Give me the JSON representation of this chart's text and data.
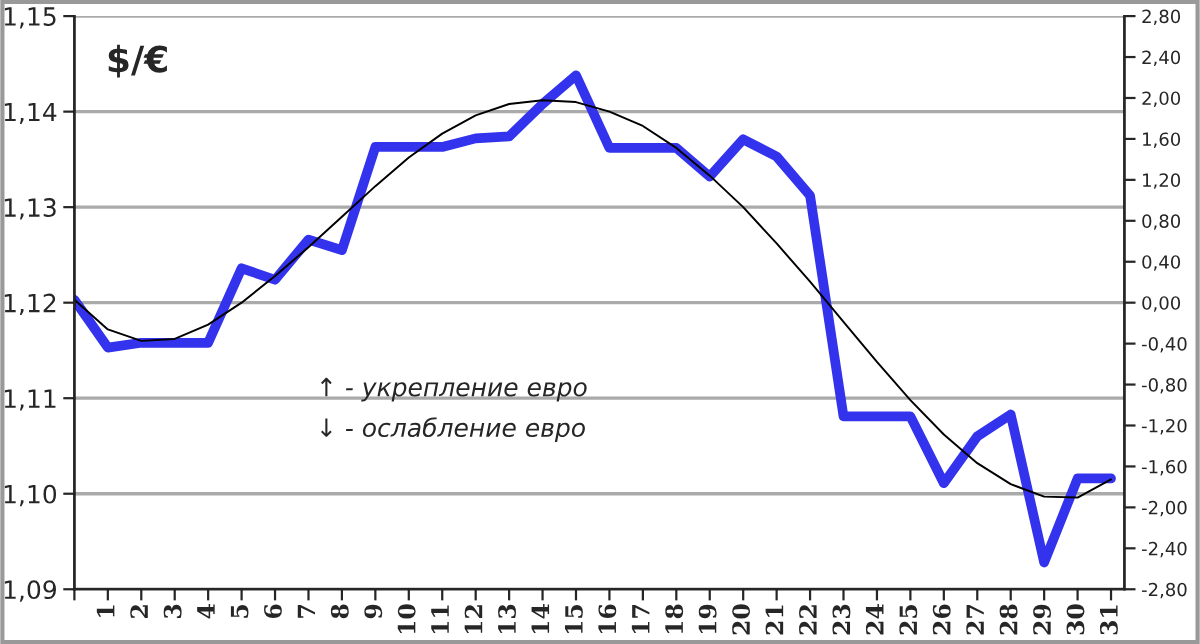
{
  "chart_data": {
    "type": "line",
    "categories": [
      null,
      "1",
      "2",
      "3",
      "4",
      "5",
      "6",
      "7",
      "8",
      "9",
      "10",
      "11",
      "12",
      "13",
      "14",
      "15",
      "16",
      "17",
      "18",
      "19",
      "20",
      "21",
      "22",
      "23",
      "24",
      "25",
      "26",
      "27",
      "28",
      "29",
      "30",
      "31"
    ],
    "series": [
      {
        "color": "#3333ee",
        "values": [
          1.1203,
          1.1153,
          1.1158,
          1.1158,
          1.1158,
          1.1236,
          1.1224,
          1.1266,
          1.1255,
          1.1363,
          1.1363,
          1.1363,
          1.1372,
          1.1374,
          1.1408,
          1.1438,
          1.1362,
          1.1362,
          1.1362,
          1.1332,
          1.1371,
          1.1353,
          1.1312,
          1.1081,
          1.1081,
          1.1081,
          1.1011,
          1.106,
          1.1083,
          1.0928,
          1.1016,
          1.1016
        ]
      },
      {
        "color": "#000000",
        "values": [
          1.1203,
          1.1172,
          1.116,
          1.1162,
          1.1177,
          1.12,
          1.1228,
          1.1258,
          1.129,
          1.1322,
          1.1352,
          1.1377,
          1.1396,
          1.1408,
          1.1412,
          1.141,
          1.14,
          1.1385,
          1.1362,
          1.1333,
          1.13,
          1.1262,
          1.1222,
          1.118,
          1.1138,
          1.1098,
          1.1062,
          1.1032,
          1.101,
          1.0997,
          1.0996,
          1.1015
        ]
      }
    ],
    "ylim": [
      1.09,
      1.15
    ],
    "yticks": [
      {
        "value": 1.09,
        "label": "1,09"
      },
      {
        "value": 1.1,
        "label": "1,10"
      },
      {
        "value": 1.11,
        "label": "1,11"
      },
      {
        "value": 1.12,
        "label": "1,12"
      },
      {
        "value": 1.13,
        "label": "1,13"
      },
      {
        "value": 1.14,
        "label": "1,14"
      },
      {
        "value": 1.15,
        "label": "1,15"
      }
    ],
    "y2lim": [
      -2.8,
      2.8
    ],
    "y2ticks": [
      {
        "value": 2.8,
        "label": "2,80"
      },
      {
        "value": 2.4,
        "label": "2,40"
      },
      {
        "value": 2.0,
        "label": "2,00"
      },
      {
        "value": 1.6,
        "label": "1,60"
      },
      {
        "value": 1.2,
        "label": "1,20"
      },
      {
        "value": 0.8,
        "label": "0,80"
      },
      {
        "value": 0.4,
        "label": "0,40"
      },
      {
        "value": 0.0,
        "label": "0,00"
      },
      {
        "value": -0.4,
        "label": "-0,40"
      },
      {
        "value": -0.8,
        "label": "-0,80"
      },
      {
        "value": -1.2,
        "label": "-1,20"
      },
      {
        "value": -1.6,
        "label": "-1,60"
      },
      {
        "value": -2.0,
        "label": "-2,00"
      },
      {
        "value": -2.4,
        "label": "-2,40"
      },
      {
        "value": -2.8,
        "label": "-2,80"
      }
    ],
    "annotations": [
      "$/€",
      "↑ - укрепление евро",
      "↓ - ослабление евро"
    ],
    "grid": "y",
    "legend": false
  }
}
